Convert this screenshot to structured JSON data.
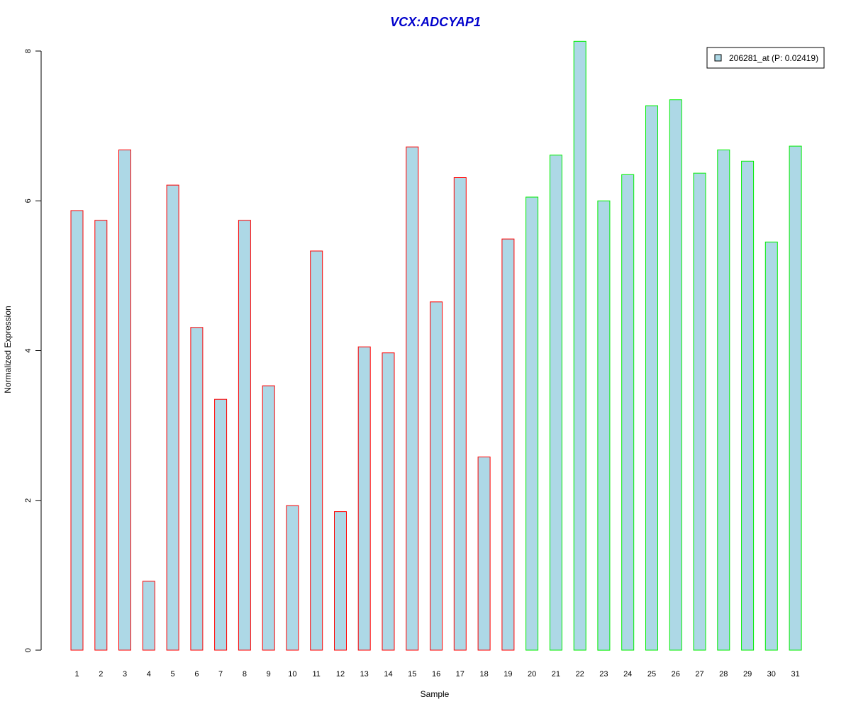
{
  "chart_data": {
    "type": "bar",
    "title": "VCX:ADCYAP1",
    "xlabel": "Sample",
    "ylabel": "Normalized Expression",
    "ylim": [
      0,
      8
    ],
    "yticks": [
      "0",
      "2",
      "4",
      "6",
      "8"
    ],
    "grid": false,
    "legend_position": "top-right",
    "categories": [
      "1",
      "2",
      "3",
      "4",
      "5",
      "6",
      "7",
      "8",
      "9",
      "10",
      "11",
      "12",
      "13",
      "14",
      "15",
      "16",
      "17",
      "18",
      "19",
      "20",
      "21",
      "22",
      "23",
      "24",
      "25",
      "26",
      "27",
      "28",
      "29",
      "30",
      "31"
    ],
    "series": [
      {
        "name": "206281_at (P: 0.02419)",
        "values": [
          5.87,
          5.74,
          6.68,
          0.92,
          6.21,
          4.31,
          3.35,
          5.74,
          3.53,
          1.93,
          5.33,
          1.85,
          4.05,
          3.97,
          6.72,
          4.65,
          6.31,
          2.58,
          5.49,
          6.05,
          6.61,
          8.13,
          6.0,
          6.35,
          7.27,
          7.35,
          6.37,
          6.68,
          6.53,
          5.45,
          6.73
        ]
      }
    ],
    "bar_fill": "#add8e6",
    "group_border_colors": [
      "#ff0000",
      "#ff0000",
      "#ff0000",
      "#ff0000",
      "#ff0000",
      "#ff0000",
      "#ff0000",
      "#ff0000",
      "#ff0000",
      "#ff0000",
      "#ff0000",
      "#ff0000",
      "#ff0000",
      "#ff0000",
      "#ff0000",
      "#ff0000",
      "#ff0000",
      "#ff0000",
      "#ff0000",
      "#00ee00",
      "#00ee00",
      "#00ee00",
      "#00ee00",
      "#00ee00",
      "#00ee00",
      "#00ee00",
      "#00ee00",
      "#00ee00",
      "#00ee00",
      "#00ee00",
      "#00ee00"
    ],
    "title_color": "#0000cc"
  }
}
